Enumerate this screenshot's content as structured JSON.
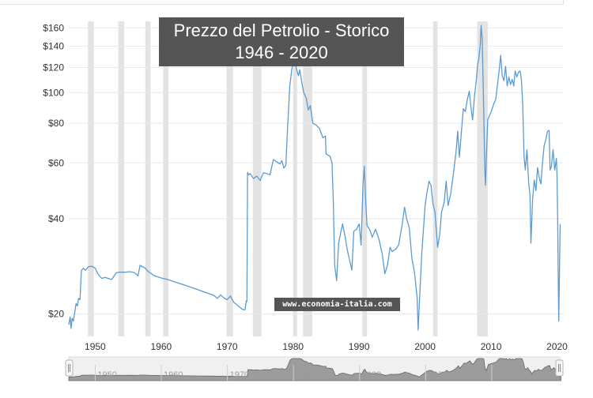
{
  "chart_data": {
    "type": "line",
    "title_lines": [
      "Prezzo del Petrolio -  Storico",
      "1946 - 2020"
    ],
    "watermark": "www.economia-italia.com",
    "y_scale": "log",
    "ylim": [
      17,
      165
    ],
    "xlim": [
      1946.0,
      2020.3
    ],
    "y_ticks": [
      {
        "value": 20,
        "label": "$20"
      },
      {
        "value": 40,
        "label": "$40"
      },
      {
        "value": 60,
        "label": "$60"
      },
      {
        "value": 80,
        "label": "$80"
      },
      {
        "value": 100,
        "label": "$100"
      },
      {
        "value": 120,
        "label": "$120"
      },
      {
        "value": 140,
        "label": "$140"
      },
      {
        "value": 160,
        "label": "$160"
      }
    ],
    "x_ticks": [
      {
        "value": 1950,
        "label": "1950"
      },
      {
        "value": 1960,
        "label": "1960"
      },
      {
        "value": 1970,
        "label": "1970"
      },
      {
        "value": 1980,
        "label": "1980"
      },
      {
        "value": 1990,
        "label": "1990"
      },
      {
        "value": 2000,
        "label": "2000"
      },
      {
        "value": 2010,
        "label": "2010"
      },
      {
        "value": 2020,
        "label": "2020"
      }
    ],
    "navigator_labels": [
      "1950",
      "1960",
      "1970",
      "1980",
      "1990",
      "2000",
      "2010"
    ],
    "recessions": [
      [
        1948.9,
        1949.8
      ],
      [
        1953.5,
        1954.4
      ],
      [
        1957.6,
        1958.4
      ],
      [
        1960.3,
        1961.1
      ],
      [
        1969.9,
        1970.9
      ],
      [
        1973.9,
        1975.2
      ],
      [
        1980.0,
        1980.6
      ],
      [
        1981.5,
        1982.9
      ],
      [
        1990.5,
        1991.2
      ],
      [
        2001.2,
        2001.9
      ],
      [
        2007.9,
        2009.5
      ]
    ],
    "series": [
      {
        "values": [
          [
            1946.0,
            18.5
          ],
          [
            1946.2,
            19.6
          ],
          [
            1946.35,
            18.0
          ],
          [
            1946.5,
            19.4
          ],
          [
            1946.7,
            19.0
          ],
          [
            1946.9,
            20.2
          ],
          [
            1947.1,
            21.6
          ],
          [
            1947.3,
            21.2
          ],
          [
            1947.5,
            22.4
          ],
          [
            1947.7,
            22.2
          ],
          [
            1947.9,
            27.4
          ],
          [
            1948.2,
            27.9
          ],
          [
            1948.5,
            27.5
          ],
          [
            1949.0,
            28.2
          ],
          [
            1949.5,
            28.3
          ],
          [
            1950.0,
            27.9
          ],
          [
            1950.5,
            26.6
          ],
          [
            1951.0,
            25.9
          ],
          [
            1951.5,
            26.1
          ],
          [
            1952.5,
            25.7
          ],
          [
            1953.2,
            27.0
          ],
          [
            1953.6,
            27.1
          ],
          [
            1954.5,
            27.1
          ],
          [
            1955.3,
            27.2
          ],
          [
            1956.0,
            27.0
          ],
          [
            1956.5,
            26.4
          ],
          [
            1956.8,
            28.5
          ],
          [
            1957.5,
            28.0
          ],
          [
            1958.0,
            27.3
          ],
          [
            1959.0,
            26.4
          ],
          [
            1960.0,
            26.0
          ],
          [
            1961.0,
            25.7
          ],
          [
            1962.0,
            25.3
          ],
          [
            1963.0,
            24.9
          ],
          [
            1964.0,
            24.5
          ],
          [
            1965.0,
            24.1
          ],
          [
            1966.0,
            23.7
          ],
          [
            1967.0,
            23.3
          ],
          [
            1968.0,
            22.9
          ],
          [
            1968.5,
            22.4
          ],
          [
            1969.0,
            23.0
          ],
          [
            1969.5,
            22.5
          ],
          [
            1970.0,
            22.2
          ],
          [
            1970.5,
            22.8
          ],
          [
            1971.0,
            21.8
          ],
          [
            1971.6,
            21.3
          ],
          [
            1972.3,
            20.7
          ],
          [
            1972.7,
            20.6
          ],
          [
            1972.9,
            22.0
          ],
          [
            1973.0,
            21.9
          ],
          [
            1973.1,
            56.0
          ],
          [
            1973.3,
            55.0
          ],
          [
            1973.5,
            55.5
          ],
          [
            1974.0,
            53.5
          ],
          [
            1974.5,
            54.5
          ],
          [
            1975.0,
            52.8
          ],
          [
            1975.5,
            55.8
          ],
          [
            1976.0,
            55.5
          ],
          [
            1976.5,
            55.0
          ],
          [
            1977.0,
            61.5
          ],
          [
            1977.5,
            60.5
          ],
          [
            1978.0,
            59.5
          ],
          [
            1978.3,
            61.0
          ],
          [
            1978.6,
            57.8
          ],
          [
            1978.9,
            59.0
          ],
          [
            1979.2,
            80.0
          ],
          [
            1979.5,
            105.0
          ],
          [
            1979.8,
            118.0
          ],
          [
            1980.0,
            124.0
          ],
          [
            1980.2,
            126.5
          ],
          [
            1980.5,
            119.0
          ],
          [
            1980.8,
            113.0
          ],
          [
            1981.0,
            118.0
          ],
          [
            1981.3,
            108.0
          ],
          [
            1981.6,
            100.0
          ],
          [
            1982.0,
            96.0
          ],
          [
            1982.3,
            88.0
          ],
          [
            1982.6,
            91.0
          ],
          [
            1983.0,
            80.0
          ],
          [
            1983.5,
            79.0
          ],
          [
            1984.0,
            77.0
          ],
          [
            1984.5,
            72.0
          ],
          [
            1984.9,
            73.0
          ],
          [
            1985.0,
            64.0
          ],
          [
            1985.3,
            63.5
          ],
          [
            1985.6,
            63.0
          ],
          [
            1985.9,
            60.0
          ],
          [
            1986.1,
            45.0
          ],
          [
            1986.3,
            28.5
          ],
          [
            1986.6,
            25.5
          ],
          [
            1986.9,
            33.5
          ],
          [
            1987.2,
            36.0
          ],
          [
            1987.5,
            38.5
          ],
          [
            1987.9,
            35.0
          ],
          [
            1988.2,
            32.0
          ],
          [
            1988.5,
            30.0
          ],
          [
            1988.9,
            27.5
          ],
          [
            1989.2,
            36.5
          ],
          [
            1989.6,
            37.0
          ],
          [
            1990.0,
            38.5
          ],
          [
            1990.3,
            33.0
          ],
          [
            1990.6,
            52.0
          ],
          [
            1990.8,
            58.5
          ],
          [
            1991.0,
            45.5
          ],
          [
            1991.2,
            38.0
          ],
          [
            1991.6,
            37.0
          ],
          [
            1992.0,
            35.0
          ],
          [
            1992.5,
            37.0
          ],
          [
            1993.0,
            34.5
          ],
          [
            1993.5,
            31.0
          ],
          [
            1993.9,
            26.8
          ],
          [
            1994.3,
            28.5
          ],
          [
            1994.7,
            32.5
          ],
          [
            1995.0,
            31.5
          ],
          [
            1995.5,
            32.0
          ],
          [
            1996.0,
            33.0
          ],
          [
            1996.5,
            38.0
          ],
          [
            1996.9,
            43.5
          ],
          [
            1997.2,
            40.0
          ],
          [
            1997.6,
            37.5
          ],
          [
            1998.0,
            30.0
          ],
          [
            1998.4,
            27.0
          ],
          [
            1998.8,
            22.5
          ],
          [
            1998.95,
            17.8
          ],
          [
            1999.2,
            23.0
          ],
          [
            1999.5,
            31.0
          ],
          [
            1999.8,
            38.0
          ],
          [
            2000.0,
            44.0
          ],
          [
            2000.3,
            48.5
          ],
          [
            2000.6,
            52.5
          ],
          [
            2000.9,
            51.0
          ],
          [
            2001.2,
            44.5
          ],
          [
            2001.5,
            42.0
          ],
          [
            2001.9,
            32.5
          ],
          [
            2002.2,
            35.5
          ],
          [
            2002.5,
            42.0
          ],
          [
            2002.9,
            45.0
          ],
          [
            2003.2,
            52.5
          ],
          [
            2003.5,
            44.0
          ],
          [
            2003.9,
            48.0
          ],
          [
            2004.3,
            55.5
          ],
          [
            2004.7,
            65.0
          ],
          [
            2004.95,
            75.5
          ],
          [
            2005.2,
            62.5
          ],
          [
            2005.5,
            75.0
          ],
          [
            2005.8,
            89.0
          ],
          [
            2006.1,
            87.0
          ],
          [
            2006.4,
            95.0
          ],
          [
            2006.7,
            101.0
          ],
          [
            2006.95,
            90.0
          ],
          [
            2007.2,
            82.0
          ],
          [
            2007.5,
            98.0
          ],
          [
            2007.8,
            111.0
          ],
          [
            2007.95,
            122.0
          ],
          [
            2008.15,
            128.0
          ],
          [
            2008.35,
            140.0
          ],
          [
            2008.5,
            163.0
          ],
          [
            2008.65,
            148.0
          ],
          [
            2008.8,
            110.0
          ],
          [
            2008.95,
            75.0
          ],
          [
            2009.05,
            58.0
          ],
          [
            2009.15,
            51.0
          ],
          [
            2009.3,
            63.0
          ],
          [
            2009.5,
            82.0
          ],
          [
            2009.8,
            85.0
          ],
          [
            2010.1,
            88.0
          ],
          [
            2010.4,
            92.0
          ],
          [
            2010.7,
            95.0
          ],
          [
            2010.9,
            103.0
          ],
          [
            2011.2,
            116.0
          ],
          [
            2011.45,
            131.0
          ],
          [
            2011.7,
            113.0
          ],
          [
            2011.95,
            109.0
          ],
          [
            2012.2,
            121.0
          ],
          [
            2012.45,
            105.0
          ],
          [
            2012.7,
            112.0
          ],
          [
            2012.95,
            106.0
          ],
          [
            2013.2,
            110.0
          ],
          [
            2013.45,
            105.0
          ],
          [
            2013.65,
            117.0
          ],
          [
            2013.9,
            112.0
          ],
          [
            2014.15,
            116.0
          ],
          [
            2014.4,
            117.0
          ],
          [
            2014.6,
            110.0
          ],
          [
            2014.8,
            92.0
          ],
          [
            2015.0,
            63.0
          ],
          [
            2015.2,
            57.0
          ],
          [
            2015.45,
            66.0
          ],
          [
            2015.7,
            52.0
          ],
          [
            2015.9,
            47.5
          ],
          [
            2016.05,
            33.5
          ],
          [
            2016.3,
            46.0
          ],
          [
            2016.55,
            53.0
          ],
          [
            2016.8,
            49.0
          ],
          [
            2017.05,
            58.0
          ],
          [
            2017.3,
            54.0
          ],
          [
            2017.55,
            51.5
          ],
          [
            2017.8,
            60.0
          ],
          [
            2018.05,
            68.0
          ],
          [
            2018.3,
            71.0
          ],
          [
            2018.55,
            75.5
          ],
          [
            2018.8,
            76.0
          ],
          [
            2018.95,
            57.0
          ],
          [
            2019.15,
            58.5
          ],
          [
            2019.4,
            66.0
          ],
          [
            2019.65,
            57.0
          ],
          [
            2019.9,
            62.0
          ],
          [
            2020.0,
            55.0
          ],
          [
            2020.1,
            40.0
          ],
          [
            2020.2,
            24.0
          ],
          [
            2020.27,
            19.0
          ],
          [
            2020.33,
            24.0
          ],
          [
            2020.4,
            30.0
          ],
          [
            2020.48,
            38.5
          ]
        ]
      }
    ]
  }
}
